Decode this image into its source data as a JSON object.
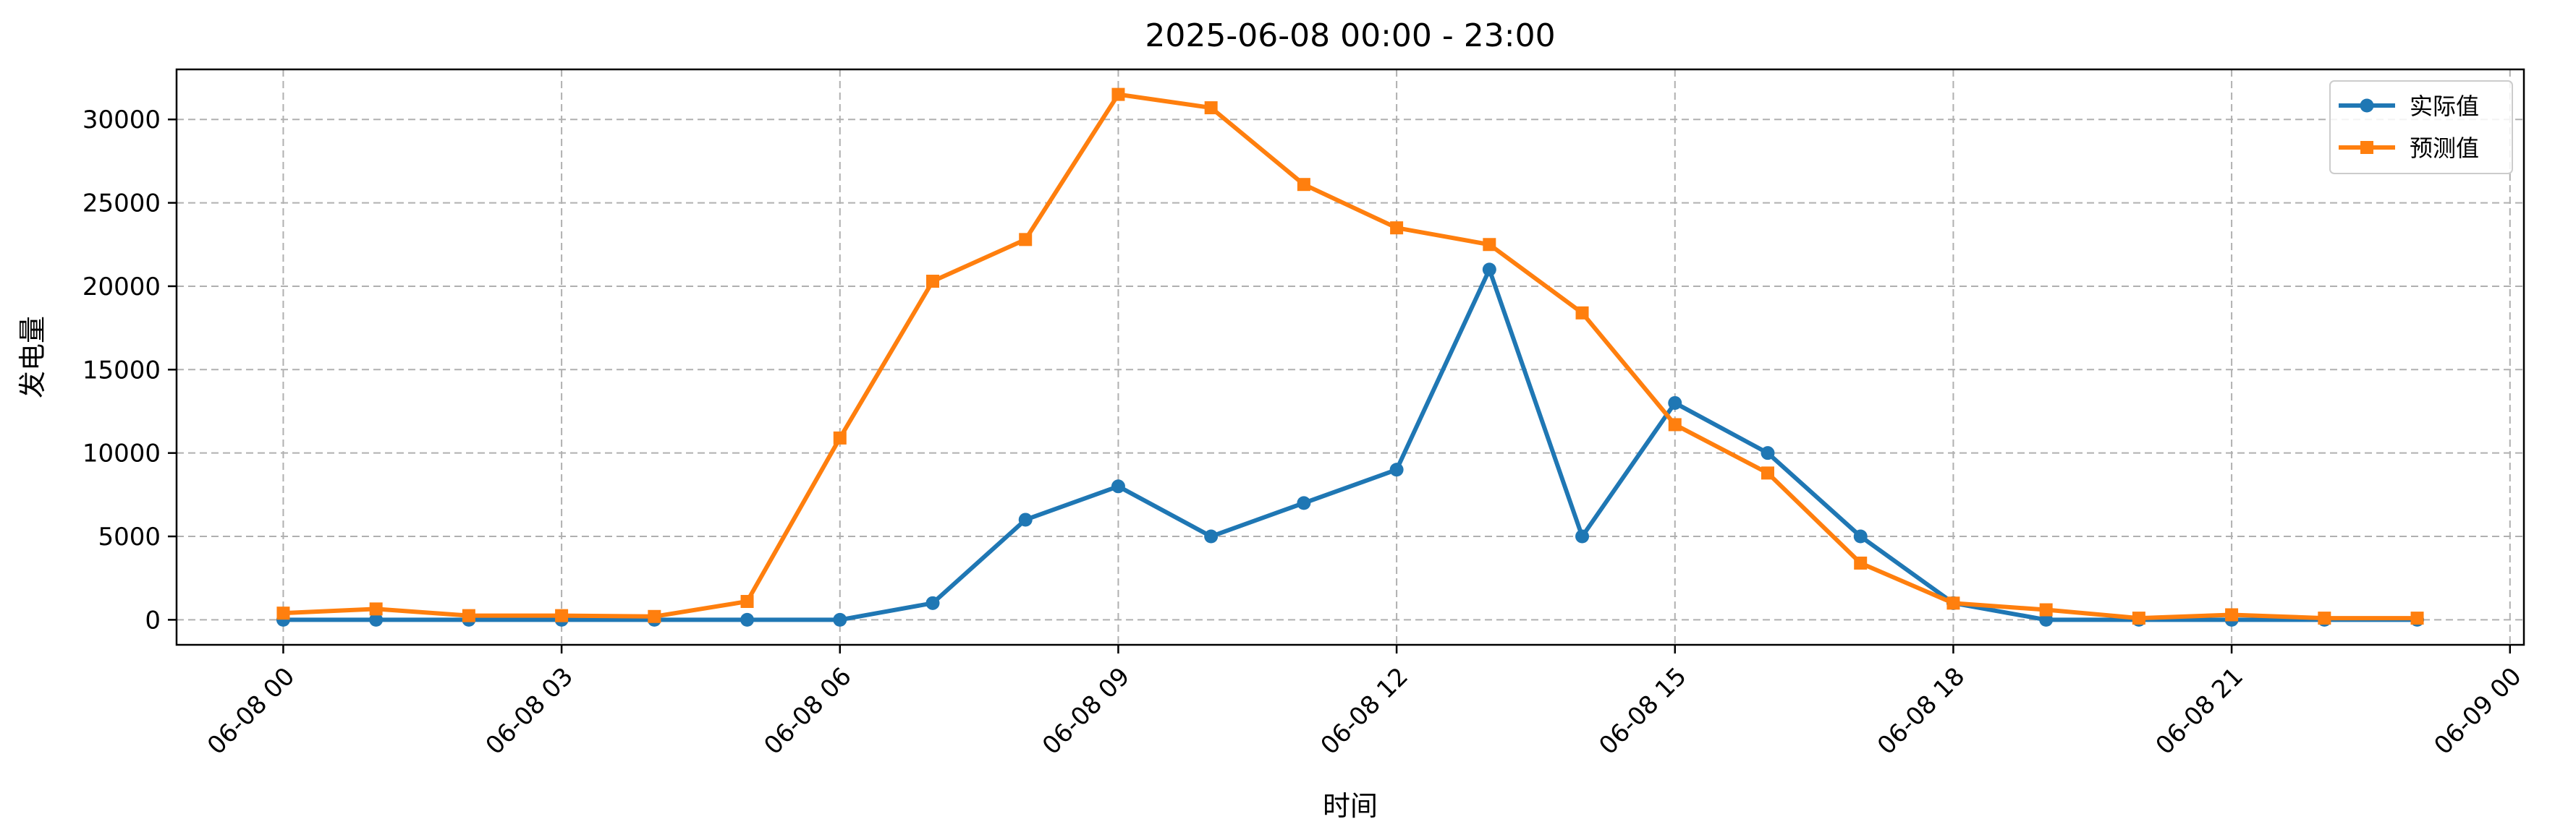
{
  "chart_data": {
    "type": "line",
    "title": "2025-06-08 00:00 - 23:00",
    "xlabel": "时间",
    "ylabel": "发电量",
    "x": [
      0,
      1,
      2,
      3,
      4,
      5,
      6,
      7,
      8,
      9,
      10,
      11,
      12,
      13,
      14,
      15,
      16,
      17,
      18,
      19,
      20,
      21,
      22,
      23
    ],
    "x_unit": "hours since 06-08 00:00",
    "xlim": [
      -1.15,
      24.15
    ],
    "ylim": [
      -1500,
      33000
    ],
    "xticks": [
      {
        "value": 0,
        "label": "06-08 00"
      },
      {
        "value": 3,
        "label": "06-08 03"
      },
      {
        "value": 6,
        "label": "06-08 06"
      },
      {
        "value": 9,
        "label": "06-08 09"
      },
      {
        "value": 12,
        "label": "06-08 12"
      },
      {
        "value": 15,
        "label": "06-08 15"
      },
      {
        "value": 18,
        "label": "06-08 18"
      },
      {
        "value": 21,
        "label": "06-08 21"
      },
      {
        "value": 24,
        "label": "06-09 00"
      }
    ],
    "yticks": [
      0,
      5000,
      10000,
      15000,
      20000,
      25000,
      30000
    ],
    "grid": true,
    "legend_position": "top-right",
    "series": [
      {
        "name": "实际值",
        "color": "#1f77b4",
        "marker": "circle",
        "values": [
          0,
          0,
          0,
          0,
          0,
          0,
          0,
          1000,
          6000,
          8000,
          5000,
          7000,
          9000,
          21000,
          5000,
          13000,
          10000,
          5000,
          1000,
          0,
          0,
          0,
          0,
          0
        ]
      },
      {
        "name": "预测值",
        "color": "#ff7f0e",
        "marker": "square",
        "values": [
          400,
          650,
          250,
          250,
          200,
          1100,
          10900,
          20300,
          22800,
          31500,
          30700,
          26100,
          23500,
          22500,
          18400,
          11700,
          8800,
          3400,
          1000,
          600,
          100,
          300,
          100,
          100
        ]
      }
    ]
  }
}
